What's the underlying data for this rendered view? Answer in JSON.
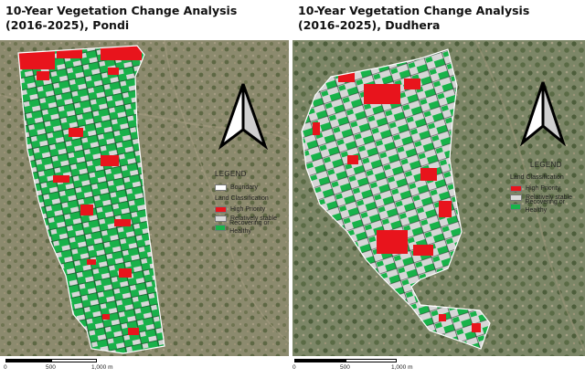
{
  "colors": {
    "high_priority": "#e8141c",
    "relatively_stable": "#d9d9d9",
    "recovering": "#18b34a",
    "boundary": "#ffffff"
  },
  "left_map": {
    "title_line1": "10-Year Vegetation Change Analysis",
    "title_line2": "(2016-2025), Pondi",
    "north_arrow_icon": "north-arrow-icon",
    "legend": {
      "title": "LEGEND",
      "boundary_label": "Boundary",
      "classification_label": "Land Classification",
      "items": [
        "High Priority",
        "Relatively stable",
        "Recovering or Healthy"
      ]
    },
    "scale": {
      "labels": [
        "0",
        "500",
        "1,000 m"
      ]
    }
  },
  "right_map": {
    "title_line1": "10-Year Vegetation Change Analysis",
    "title_line2": "(2016-2025), Dudhera",
    "north_arrow_icon": "north-arrow-icon",
    "legend": {
      "title": "LEGEND",
      "classification_label": "Land Classification",
      "items": [
        "High Priority",
        "Relatively stable",
        "Recovering or Healthy"
      ]
    },
    "scale": {
      "labels": [
        "0",
        "500",
        "1,000 m"
      ]
    }
  }
}
